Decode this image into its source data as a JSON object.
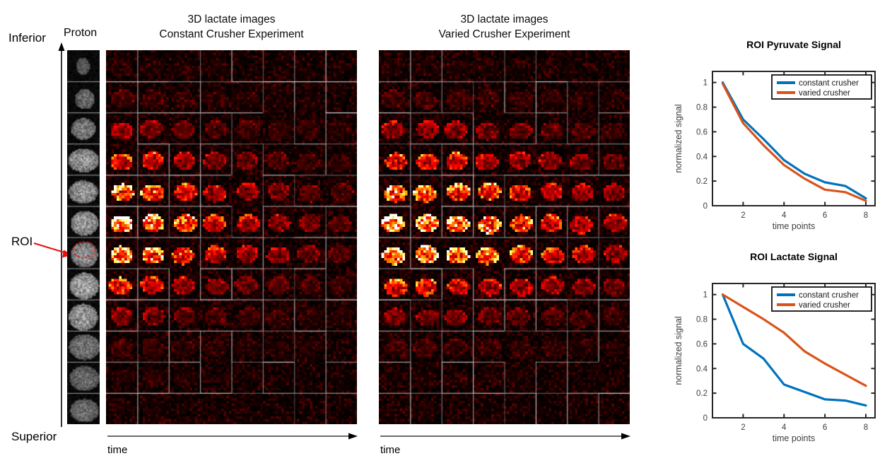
{
  "anatomy_axis": {
    "top_label": "Inferior",
    "bottom_label": "Superior"
  },
  "proton_panel": {
    "label": "Proton",
    "roi_label": "ROI",
    "num_slices": 12,
    "roi_slice_index": 6
  },
  "montage_panels": [
    {
      "title_line1": "3D lactate images",
      "title_line2": "Constant Crusher Experiment",
      "time_label": "time",
      "rows": 12,
      "cols": 8,
      "decay_key": "constant"
    },
    {
      "title_line1": "3D lactate images",
      "title_line2": "Varied Crusher Experiment",
      "time_label": "time",
      "rows": 12,
      "cols": 8,
      "decay_key": "varied"
    }
  ],
  "montage_render": {
    "row_intensity": [
      0.04,
      0.1,
      0.3,
      0.52,
      0.78,
      1.0,
      0.95,
      0.55,
      0.25,
      0.1,
      0.03,
      0.02
    ],
    "decay": {
      "constant": [
        1.0,
        0.8,
        0.6,
        0.45,
        0.35,
        0.27,
        0.2,
        0.14
      ],
      "varied": [
        1.0,
        0.92,
        0.84,
        0.72,
        0.6,
        0.5,
        0.4,
        0.3
      ]
    },
    "gridline_color": "#d9d9d9",
    "roi_ellipse_color": "#e81010"
  },
  "chart_style": {
    "axis_color": "#262626",
    "tick_label_color": "#3d3d3d",
    "title_color": "#000000",
    "legend_border_color": "#111111"
  },
  "chart_data": [
    {
      "type": "line",
      "title": "ROI Pyruvate Signal",
      "xlabel": "time points",
      "ylabel": "normalized signal",
      "x": [
        1,
        2,
        3,
        4,
        5,
        6,
        7,
        8
      ],
      "series": [
        {
          "name": "constant crusher",
          "color": "#0072BD",
          "values": [
            1.0,
            0.7,
            0.54,
            0.37,
            0.26,
            0.19,
            0.16,
            0.06
          ]
        },
        {
          "name": "varied crusher",
          "color": "#D95319",
          "values": [
            0.99,
            0.67,
            0.49,
            0.33,
            0.22,
            0.13,
            0.11,
            0.04
          ]
        }
      ],
      "xlim": [
        0.5,
        8.45
      ],
      "ylim": [
        0,
        1.09
      ],
      "xticks": [
        2,
        4,
        6,
        8
      ],
      "yticks": [
        0,
        0.2,
        0.4,
        0.6,
        0.8,
        1
      ],
      "grid": false,
      "legend_position": "northeast"
    },
    {
      "type": "line",
      "title": "ROI Lactate Signal",
      "xlabel": "time points",
      "ylabel": "normalized signal",
      "x": [
        1,
        2,
        3,
        4,
        5,
        6,
        7,
        8
      ],
      "series": [
        {
          "name": "constant crusher",
          "color": "#0072BD",
          "values": [
            1.0,
            0.6,
            0.48,
            0.27,
            0.21,
            0.15,
            0.14,
            0.1
          ]
        },
        {
          "name": "varied crusher",
          "color": "#D95319",
          "values": [
            1.0,
            0.9,
            0.8,
            0.69,
            0.54,
            0.44,
            0.35,
            0.26
          ]
        }
      ],
      "xlim": [
        0.5,
        8.45
      ],
      "ylim": [
        0,
        1.09
      ],
      "xticks": [
        2,
        4,
        6,
        8
      ],
      "yticks": [
        0,
        0.2,
        0.4,
        0.6,
        0.8,
        1
      ],
      "grid": false,
      "legend_position": "northeast"
    }
  ]
}
